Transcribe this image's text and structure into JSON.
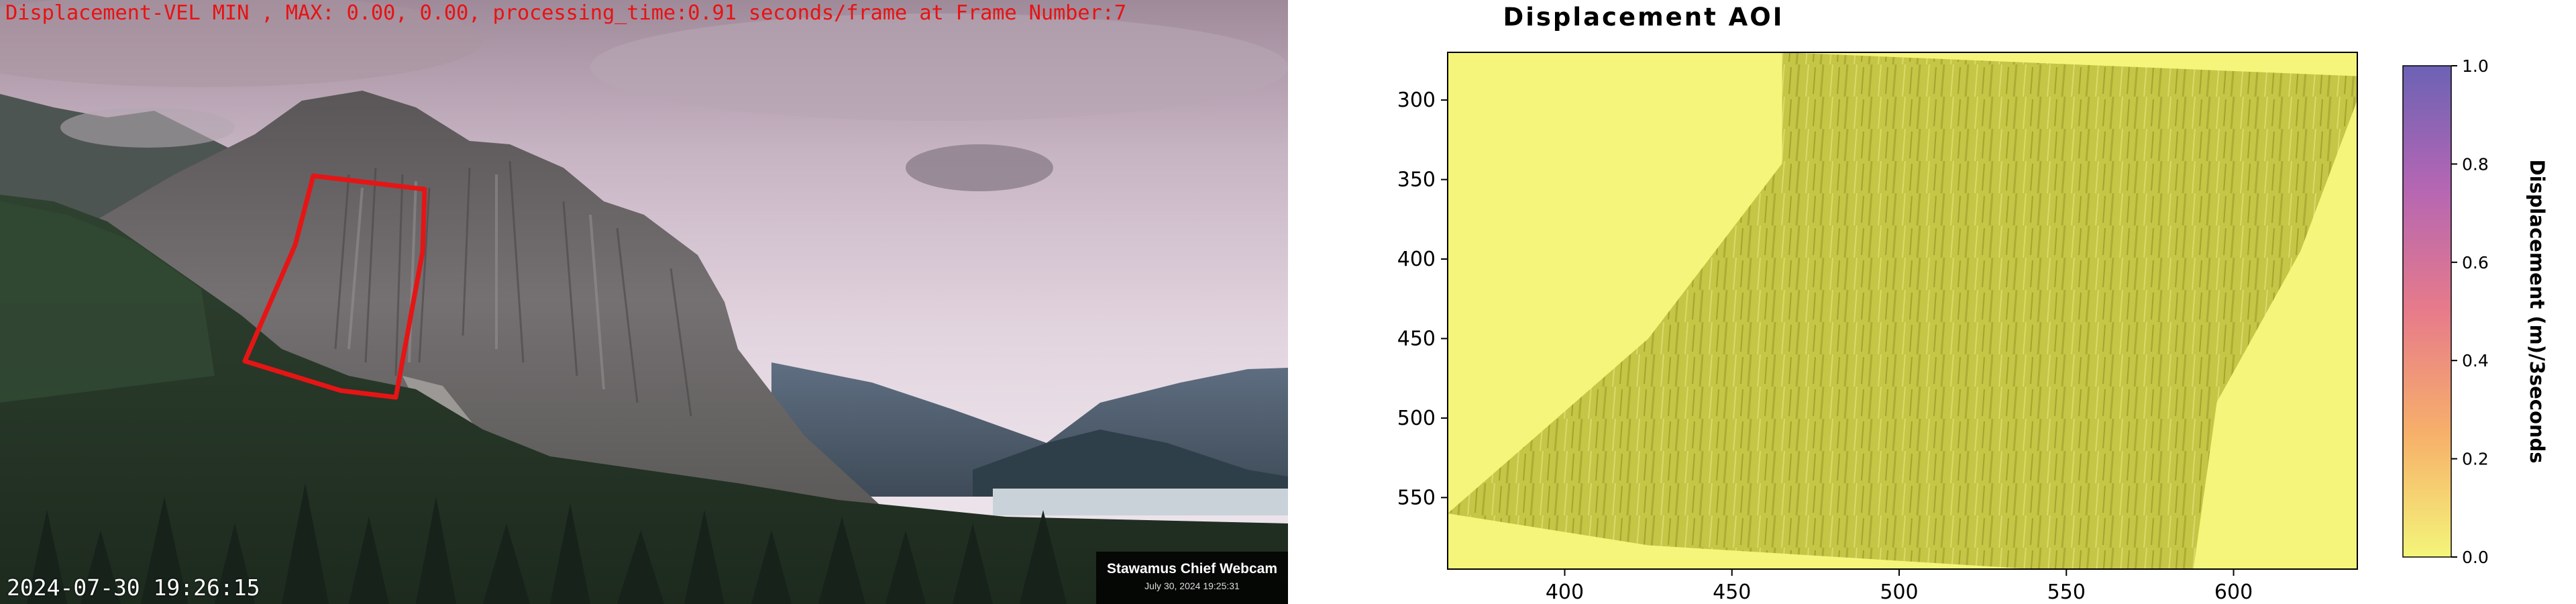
{
  "webcam": {
    "overlay_text": "Displacement-VEL MIN , MAX: 0.00, 0.00, processing_time:0.91 seconds/frame at Frame Number:7",
    "timestamp": "2024-07-30 19:26:15",
    "badge_name": "Stawamus Chief Webcam",
    "badge_date": "July 30, 2024 19:25:31",
    "aoi_outline_color": "#e51515",
    "icon": "mountain-landscape"
  },
  "plot": {
    "title": "Displacement AOI",
    "colorbar_label": "Displacement (m)/3seconds",
    "colorbar_colors": [
      "#f4f57a",
      "#f7b06a",
      "#e77b8a",
      "#b566b3",
      "#6c62b5"
    ]
  },
  "chart_data": {
    "type": "heatmap",
    "title": "Displacement AOI",
    "xlabel": "",
    "ylabel": "",
    "xlim": [
      365,
      637
    ],
    "ylim": [
      595,
      270
    ],
    "x_ticks": [
      400,
      450,
      500,
      550,
      600
    ],
    "y_ticks": [
      300,
      350,
      400,
      450,
      500,
      550
    ],
    "values": "all 0.00 (uniform minimum color over the AOI)",
    "aoi_polygon": [
      [
        465,
        270
      ],
      [
        637,
        285
      ],
      [
        637,
        300
      ],
      [
        620,
        395
      ],
      [
        595,
        490
      ],
      [
        588,
        595
      ],
      [
        540,
        595
      ],
      [
        425,
        580
      ],
      [
        365,
        560
      ],
      [
        425,
        450
      ],
      [
        465,
        340
      ]
    ],
    "colorbar": {
      "label": "Displacement (m)/3seconds",
      "range": [
        0.0,
        1.0
      ],
      "ticks": [
        "0.0",
        "0.2",
        "0.4",
        "0.6",
        "0.8",
        "1.0"
      ]
    }
  }
}
